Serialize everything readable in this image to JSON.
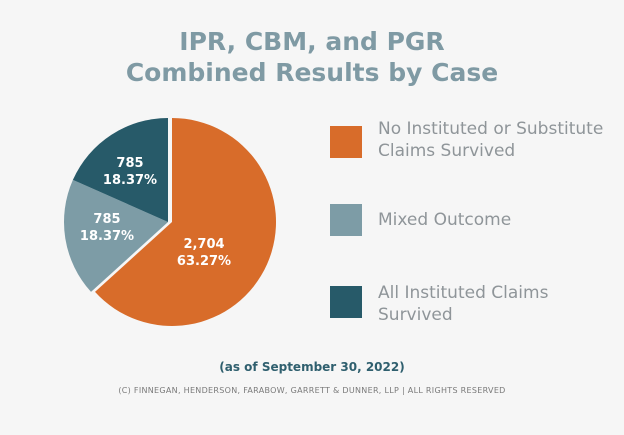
{
  "title_line1": "IPR, CBM, and PGR",
  "title_line2": "Combined Results by Case",
  "chart_data": {
    "type": "pie",
    "title": "IPR, CBM, and PGR Combined Results by Case",
    "slices": [
      {
        "name": "No Instituted or Substitute Claims Survived",
        "value": 2704,
        "value_label": "2,704",
        "percent_label": "63.27%",
        "color": "#d86c2a"
      },
      {
        "name": "Mixed Outcome",
        "value": 785,
        "value_label": "785",
        "percent_label": "18.37%",
        "color": "#7d9ca6"
      },
      {
        "name": "All Instituted Claims Survived",
        "value": 785,
        "value_label": "785",
        "percent_label": "18.37%",
        "color": "#275a69"
      }
    ],
    "legend_position": "right"
  },
  "legend": {
    "item1_line1": "No Instituted or Substitute",
    "item1_line2": "Claims Survived",
    "item2_line1": "Mixed Outcome",
    "item3_line1": "All Instituted Claims",
    "item3_line2": "Survived"
  },
  "footnote": "(as of September 30, 2022)",
  "copyright": "(C) FINNEGAN, HENDERSON, FARABOW, GARRETT & DUNNER, LLP | ALL RIGHTS RESERVED"
}
